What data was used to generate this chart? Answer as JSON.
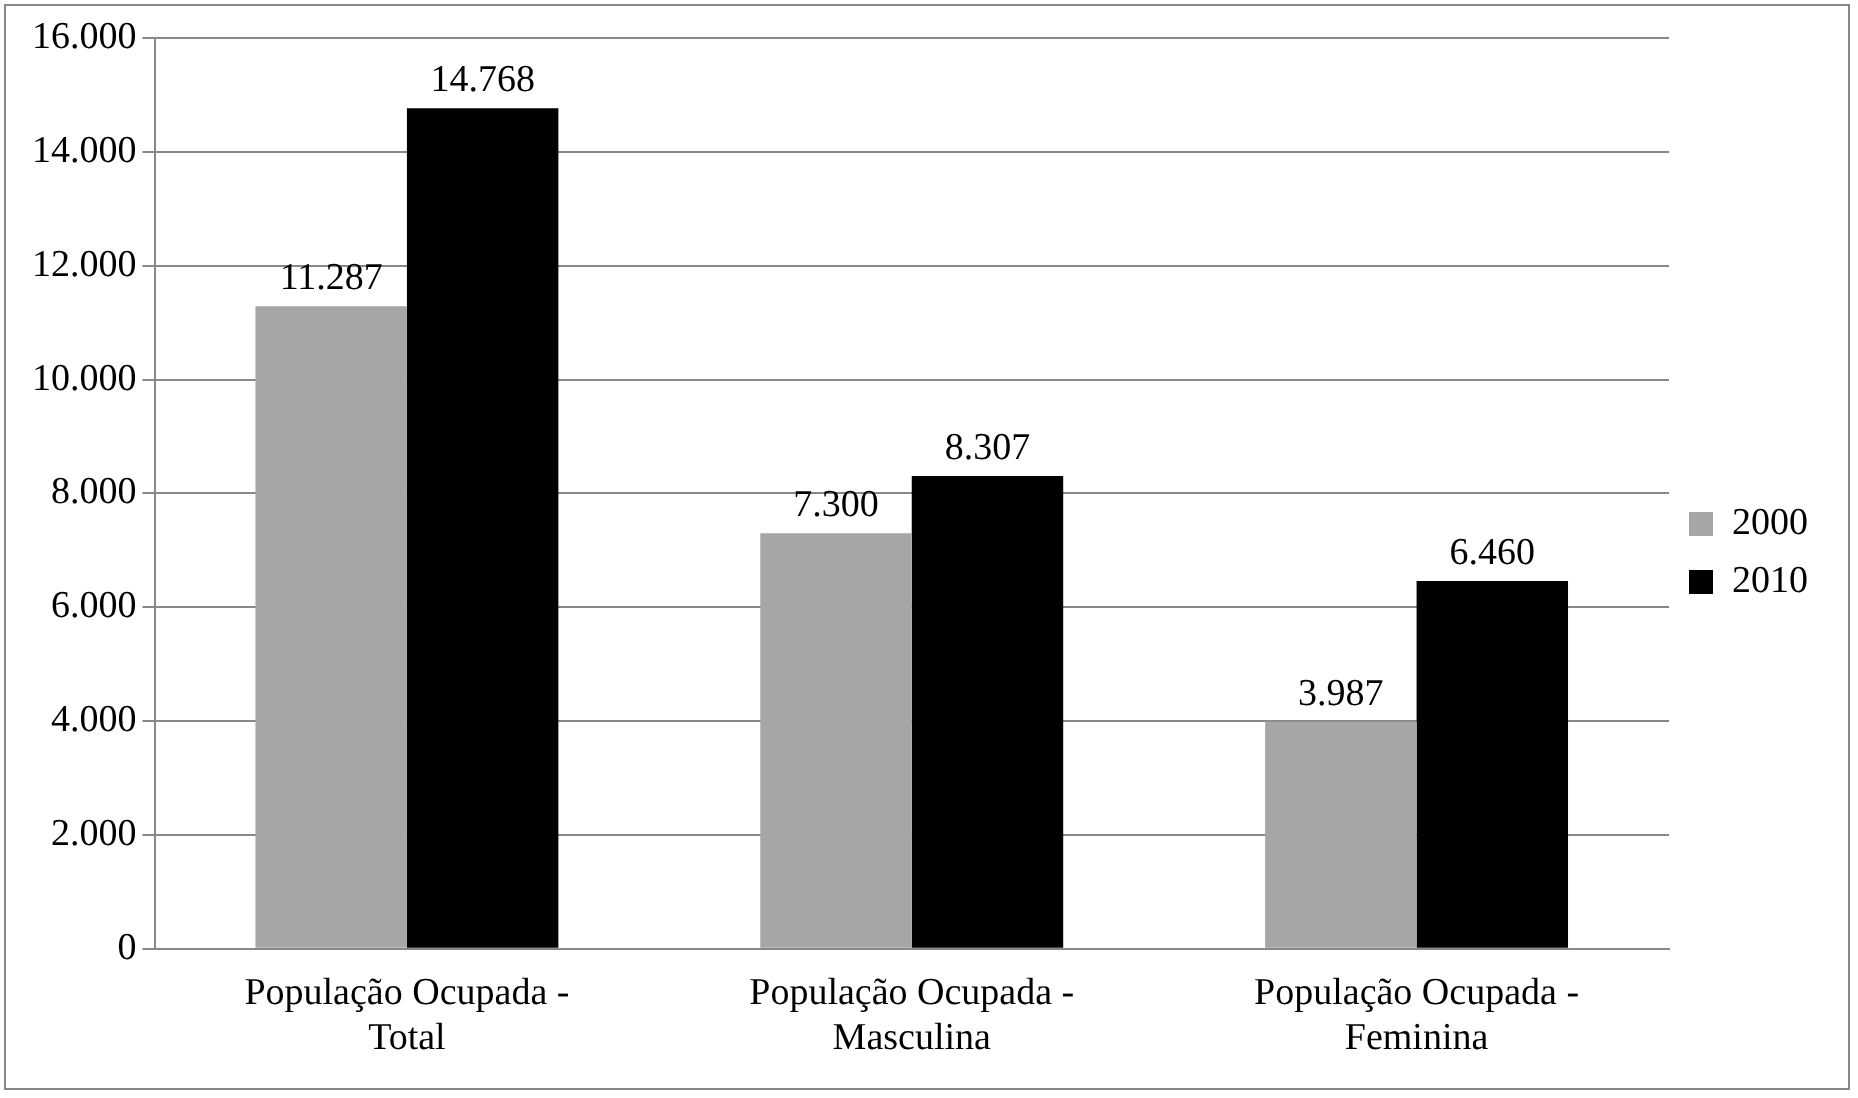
{
  "chart_data": {
    "type": "bar",
    "categories": [
      "População Ocupada - Total",
      "População Ocupada - Masculina",
      "População Ocupada - Feminina"
    ],
    "series": [
      {
        "name": "2000",
        "color": "#a6a6a6",
        "values": [
          11287,
          7300,
          3987
        ],
        "value_labels": [
          "11.287",
          "7.300",
          "3.987"
        ]
      },
      {
        "name": "2010",
        "color": "#000000",
        "values": [
          14768,
          8307,
          6460
        ],
        "value_labels": [
          "14.768",
          "8.307",
          "6.460"
        ]
      }
    ],
    "ylim": [
      0,
      16000
    ],
    "yticks": [
      {
        "value": 0,
        "label": "0"
      },
      {
        "value": 2000,
        "label": "2.000"
      },
      {
        "value": 4000,
        "label": "4.000"
      },
      {
        "value": 6000,
        "label": "6.000"
      },
      {
        "value": 8000,
        "label": "8.000"
      },
      {
        "value": 10000,
        "label": "10.000"
      },
      {
        "value": 12000,
        "label": "12.000"
      },
      {
        "value": 14000,
        "label": "14.000"
      },
      {
        "value": 16000,
        "label": "16.000"
      }
    ],
    "grid": "y",
    "legend": "right"
  }
}
